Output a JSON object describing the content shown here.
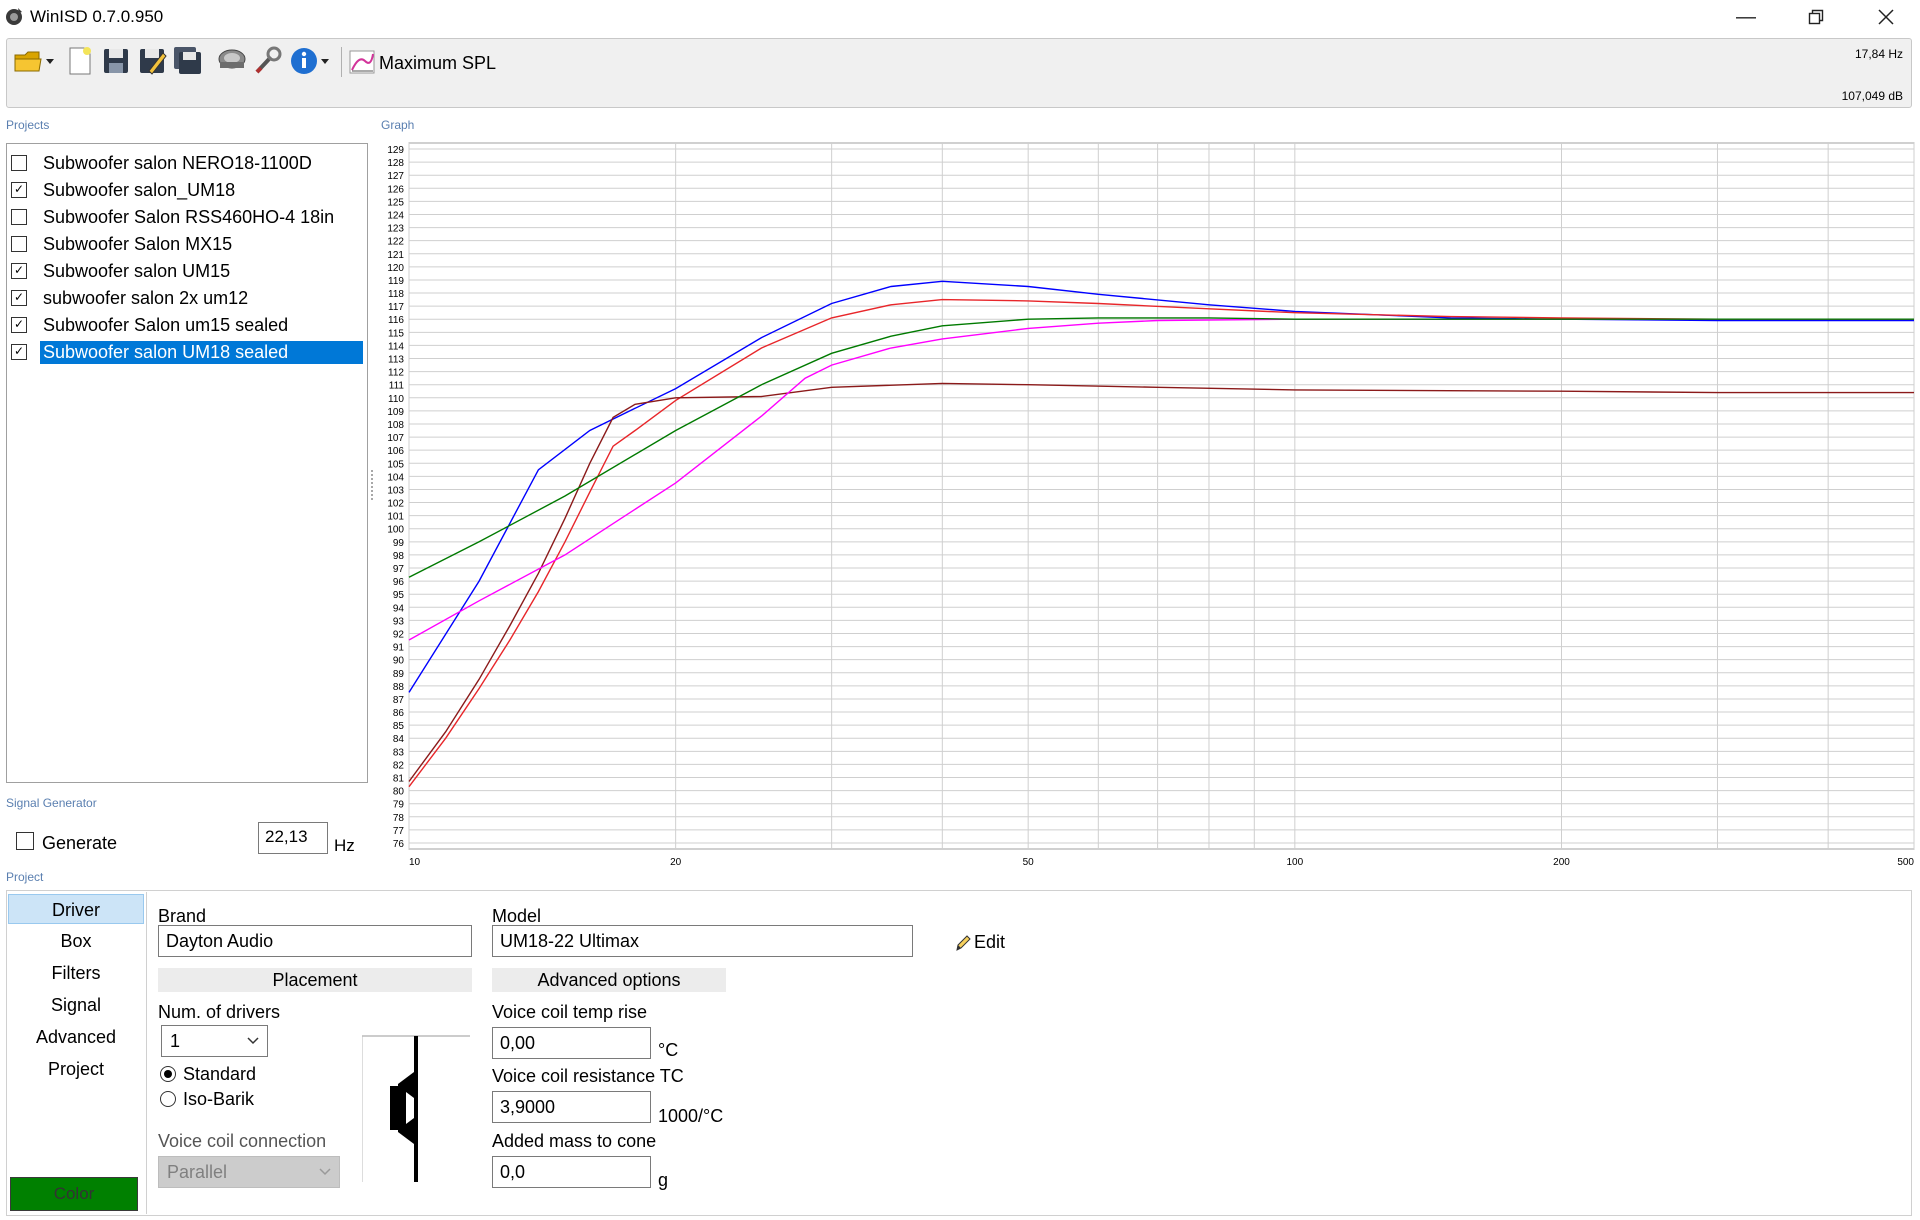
{
  "window": {
    "title": "WinISD 0.7.0.950",
    "icon": "speaker-app-icon",
    "controls": [
      "minimize-icon",
      "restore-icon",
      "close-icon"
    ]
  },
  "toolbar": {
    "icons": [
      "open-folder-icon",
      "new-project-icon",
      "save-icon",
      "save-as-icon",
      "save-all-icon",
      "driver-database-icon",
      "tools-icon",
      "info-icon",
      "graph-type-icon"
    ],
    "graph_type_label": "Maximum SPL",
    "cursor_frequency": "17,84 Hz",
    "cursor_level": "107,049 dB"
  },
  "projects": {
    "label": "Projects",
    "items": [
      {
        "name": "Subwoofer salon NERO18-1100D",
        "checked": false,
        "selected": false
      },
      {
        "name": "Subwoofer salon_UM18",
        "checked": true,
        "selected": false
      },
      {
        "name": "Subwoofer Salon RSS460HO-4 18in",
        "checked": false,
        "selected": false
      },
      {
        "name": "Subwoofer Salon MX15",
        "checked": false,
        "selected": false
      },
      {
        "name": "Subwoofer salon UM15",
        "checked": true,
        "selected": false
      },
      {
        "name": "subwoofer salon 2x um12",
        "checked": true,
        "selected": false
      },
      {
        "name": "Subwoofer Salon um15 sealed",
        "checked": true,
        "selected": false
      },
      {
        "name": "Subwoofer salon UM18 sealed",
        "checked": true,
        "selected": true
      }
    ]
  },
  "signal_generator": {
    "label": "Signal Generator",
    "generate_label": "Generate",
    "generate_checked": false,
    "frequency": "22,13",
    "unit": "Hz"
  },
  "graph": {
    "label": "Graph"
  },
  "chart_data": {
    "type": "line",
    "xscale": "log",
    "xlim": [
      10,
      500
    ],
    "ylim": [
      76,
      129
    ],
    "x_tick_labels": [
      "10",
      "20",
      "50",
      "100",
      "200",
      "500"
    ],
    "x_tick_values": [
      10,
      20,
      50,
      100,
      200,
      500
    ],
    "x_gridlines": [
      10,
      20,
      30,
      40,
      50,
      60,
      70,
      80,
      90,
      100,
      200,
      300,
      400,
      500
    ],
    "y_tick_start": 76,
    "y_tick_end": 129,
    "y_tick_step": 1,
    "grid": true,
    "series": [
      {
        "color": "#0000ff",
        "x": [
          10,
          12,
          14,
          16,
          18,
          20,
          25,
          30,
          35,
          40,
          50,
          60,
          80,
          100,
          150,
          200,
          300,
          500
        ],
        "y": [
          87.5,
          96,
          104.5,
          107.5,
          109.2,
          110.7,
          114.6,
          117.2,
          118.5,
          118.9,
          118.5,
          117.9,
          117.1,
          116.6,
          116.1,
          116,
          115.9,
          115.9
        ]
      },
      {
        "color": "#e8262a",
        "x": [
          10,
          11,
          12,
          13,
          14,
          15,
          16,
          17,
          18,
          20,
          25,
          30,
          35,
          40,
          50,
          60,
          80,
          100,
          150,
          200,
          300,
          500
        ],
        "y": [
          80.3,
          84,
          87.8,
          91.5,
          95.2,
          99,
          102.8,
          106.3,
          107.5,
          109.8,
          113.8,
          116.1,
          117.1,
          117.5,
          117.4,
          117.2,
          116.8,
          116.5,
          116.2,
          116.1,
          116,
          116
        ]
      },
      {
        "color": "#8b1a1a",
        "x": [
          10,
          11,
          12,
          13,
          14,
          15,
          16,
          17,
          18,
          20,
          25,
          30,
          40,
          50,
          70,
          100,
          200,
          300,
          500
        ],
        "y": [
          80.7,
          84.5,
          88.5,
          92.6,
          96.6,
          100.8,
          105,
          108.5,
          109.5,
          110,
          110.1,
          110.8,
          111.1,
          111,
          110.8,
          110.6,
          110.5,
          110.4,
          110.4
        ]
      },
      {
        "color": "#ff00ff",
        "x": [
          10,
          12,
          15,
          20,
          25,
          28,
          30,
          35,
          40,
          50,
          60,
          70,
          100,
          200,
          500
        ],
        "y": [
          91.5,
          94.5,
          98,
          103.5,
          108.6,
          111.5,
          112.5,
          113.8,
          114.5,
          115.3,
          115.7,
          115.9,
          116,
          116,
          116
        ]
      },
      {
        "color": "#007a00",
        "x": [
          10,
          12,
          15,
          20,
          25,
          30,
          35,
          40,
          50,
          60,
          70,
          80,
          100,
          200,
          500
        ],
        "y": [
          96.3,
          99,
          102.5,
          107.5,
          111,
          113.4,
          114.7,
          115.5,
          116,
          116.1,
          116.1,
          116.1,
          116,
          116,
          116
        ]
      }
    ]
  },
  "project_panel": {
    "label": "Project",
    "nav": [
      "Driver",
      "Box",
      "Filters",
      "Signal",
      "Advanced",
      "Project"
    ],
    "active_nav": "Driver",
    "color_button": "Color",
    "series_color": "#008000",
    "brand_label": "Brand",
    "brand_value": "Dayton Audio",
    "model_label": "Model",
    "model_value": "UM18-22 Ultimax",
    "edit_label": "Edit",
    "edit_icon": "pencil-icon",
    "placement_header": "Placement",
    "num_drivers_label": "Num. of drivers",
    "num_drivers_value": "1",
    "standard_label": "Standard",
    "isobarik_label": "Iso-Barik",
    "placement_mode": "Standard",
    "vc_connection_label": "Voice coil connection",
    "vc_connection_value": "Parallel",
    "advanced_header": "Advanced options",
    "vc_temp_rise_label": "Voice coil temp rise",
    "vc_temp_rise_value": "0,00",
    "vc_temp_rise_unit": "°C",
    "vc_resistance_tc_label": "Voice coil resistance TC",
    "vc_resistance_tc_value": "3,9000",
    "vc_resistance_tc_unit": "1000/°C",
    "added_mass_label": "Added mass to cone",
    "added_mass_value": "0,0",
    "added_mass_unit": "g"
  }
}
